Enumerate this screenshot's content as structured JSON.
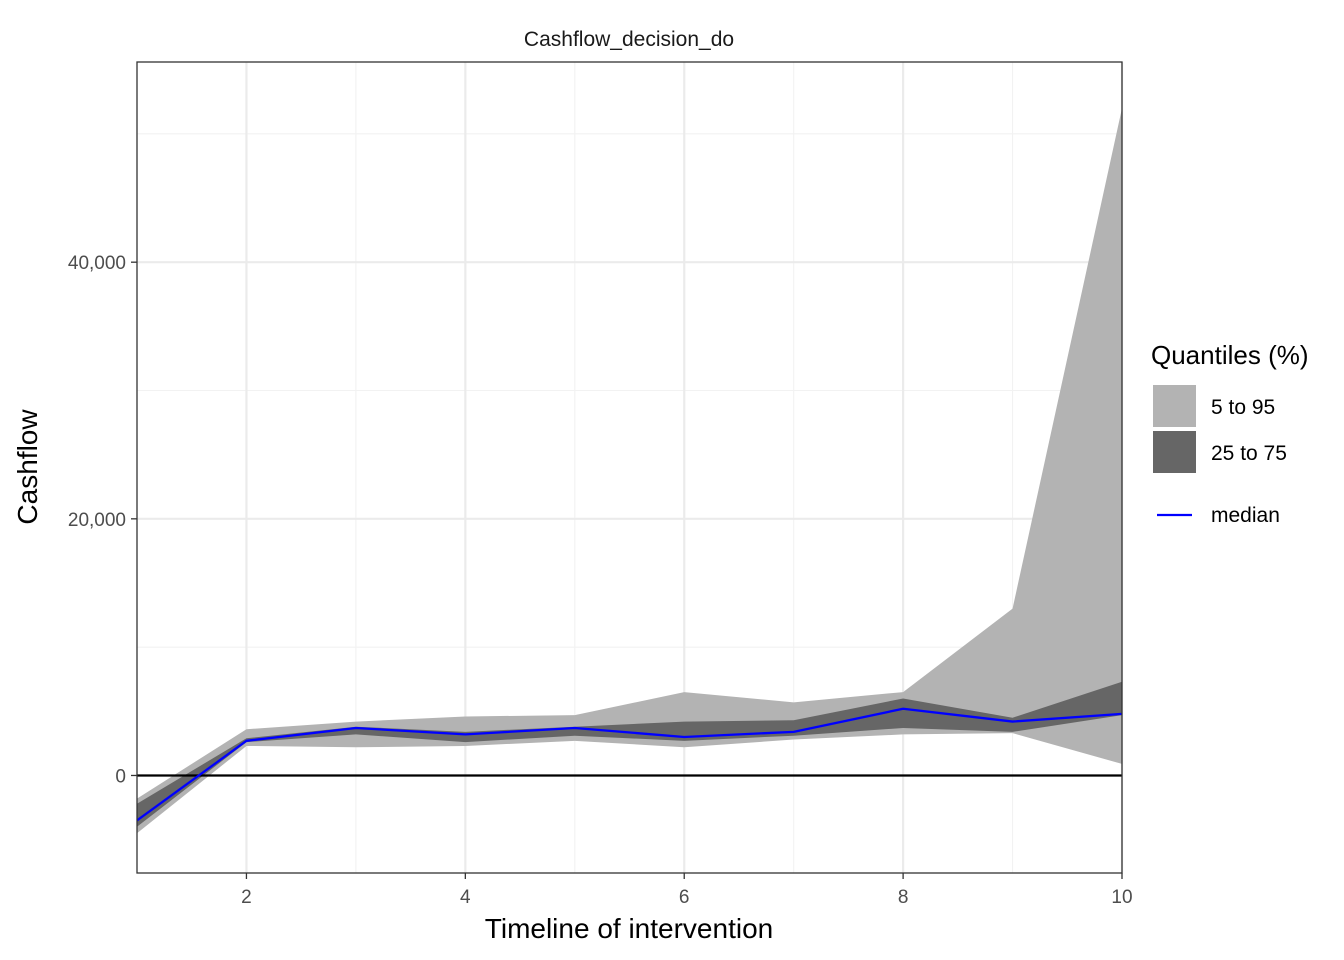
{
  "chart_data": {
    "type": "area",
    "title": "Cashflow_decision_do",
    "xlabel": "Timeline of intervention",
    "ylabel": "Cashflow",
    "x": [
      1,
      2,
      3,
      4,
      5,
      6,
      7,
      8,
      9,
      10
    ],
    "xlim": [
      1,
      10
    ],
    "ylim": [
      -7600,
      55600
    ],
    "x_ticks": [
      2,
      4,
      6,
      8,
      10
    ],
    "x_tick_labels": [
      "2",
      "4",
      "6",
      "8",
      "10"
    ],
    "y_ticks": [
      0,
      20000,
      40000
    ],
    "y_tick_labels": [
      "0",
      "20,000",
      "40,000"
    ],
    "y_minor_ticks": [
      10000,
      30000,
      50000
    ],
    "reference_line_y": 0,
    "grid": true,
    "legend_position": "right",
    "legend_title": "Quantiles (%)",
    "series": [
      {
        "name": "5 to 95",
        "kind": "band",
        "color": "#b3b3b3",
        "lower": [
          -4500,
          2300,
          2200,
          2300,
          2700,
          2200,
          2800,
          3200,
          3300,
          900
        ],
        "upper": [
          -1800,
          3600,
          4200,
          4600,
          4700,
          6500,
          5700,
          6500,
          13000,
          52000
        ]
      },
      {
        "name": "25 to 75",
        "kind": "band",
        "color": "#666666",
        "lower": [
          -4000,
          2600,
          3200,
          2600,
          3100,
          2700,
          3100,
          3700,
          3400,
          4700
        ],
        "upper": [
          -2200,
          2900,
          3800,
          3400,
          3800,
          4200,
          4300,
          6000,
          4500,
          7300
        ]
      },
      {
        "name": "median",
        "kind": "line",
        "color": "#0000ff",
        "values": [
          -3500,
          2700,
          3700,
          3200,
          3700,
          3000,
          3400,
          5200,
          4200,
          4800
        ]
      }
    ]
  }
}
